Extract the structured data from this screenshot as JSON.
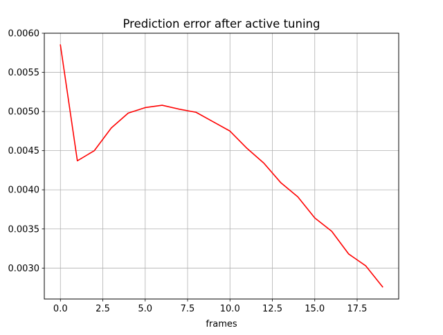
{
  "chart_data": {
    "type": "line",
    "title": "Prediction error after active tuning",
    "xlabel": "frames",
    "ylabel": "",
    "x": [
      0,
      1,
      2,
      3,
      4,
      5,
      6,
      7,
      8,
      9,
      10,
      11,
      12,
      13,
      14,
      15,
      16,
      17,
      18,
      19
    ],
    "series": [
      {
        "name": "",
        "color": "#ff0000",
        "values": [
          0.00585,
          0.00437,
          0.0045,
          0.00479,
          0.00498,
          0.00505,
          0.00508,
          0.00503,
          0.00499,
          0.00487,
          0.00475,
          0.00453,
          0.00434,
          0.00409,
          0.00391,
          0.00364,
          0.00347,
          0.00318,
          0.00303,
          0.00276
        ]
      }
    ],
    "xlim": [
      -0.95,
      19.95
    ],
    "ylim": [
      0.002605,
      0.006
    ],
    "xticks": [
      0,
      2.5,
      5,
      7.5,
      10,
      12.5,
      15,
      17.5
    ],
    "xtick_labels": [
      "0.0",
      "2.5",
      "5.0",
      "7.5",
      "10.0",
      "12.5",
      "15.0",
      "17.5"
    ],
    "yticks": [
      0.003,
      0.0035,
      0.004,
      0.0045,
      0.005,
      0.0055,
      0.006
    ],
    "ytick_labels": [
      "0.0030",
      "0.0035",
      "0.0040",
      "0.0045",
      "0.0050",
      "0.0055",
      "0.0060"
    ],
    "grid": true,
    "grid_color": "#b0b0b0"
  }
}
